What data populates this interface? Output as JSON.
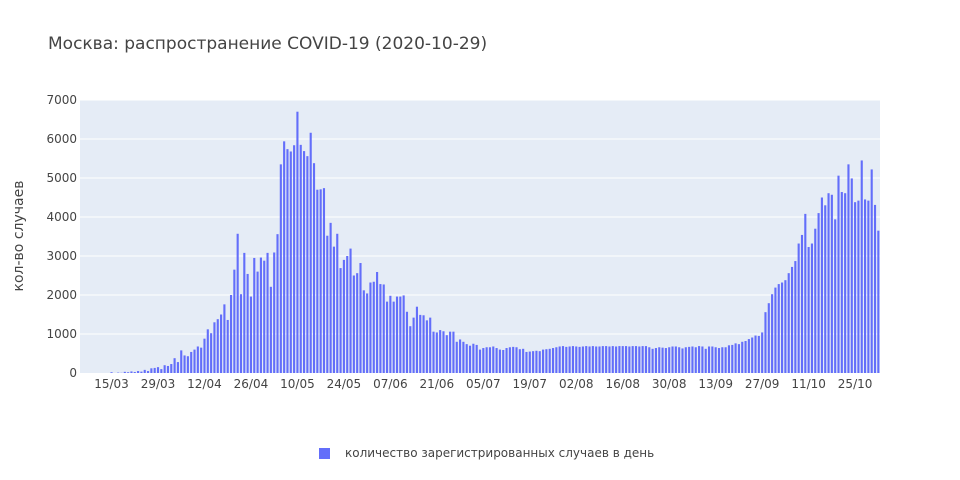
{
  "chart_data": {
    "type": "bar",
    "title": "Москва: распространение COVID-19 (2020-10-29)",
    "ylabel": "кол-во случаев",
    "xlabel": "",
    "ylim": [
      0,
      7000
    ],
    "yticks": [
      0,
      1000,
      2000,
      3000,
      4000,
      5000,
      6000,
      7000
    ],
    "ytick_labels": [
      "0",
      "1000",
      "2000",
      "3000",
      "4000",
      "5000",
      "6000",
      "7000"
    ],
    "start_date": "2020-03-06",
    "xticks": [
      "15/03",
      "29/03",
      "12/04",
      "26/04",
      "10/05",
      "24/05",
      "07/06",
      "21/06",
      "05/07",
      "19/07",
      "02/08",
      "16/08",
      "30/08",
      "13/09",
      "27/09",
      "11/10",
      "25/10"
    ],
    "bar_color": "#636efa",
    "grid": true,
    "legend_position": "bottom",
    "series": [
      {
        "name": "количество зарегистрированных случаев в день",
        "values": [
          0,
          0,
          0,
          0,
          0,
          0,
          0,
          0,
          0,
          20,
          0,
          10,
          5,
          30,
          20,
          40,
          25,
          50,
          35,
          80,
          50,
          120,
          130,
          150,
          100,
          200,
          180,
          230,
          380,
          280,
          580,
          450,
          430,
          540,
          600,
          680,
          650,
          880,
          1120,
          1020,
          1300,
          1380,
          1500,
          1760,
          1360,
          2000,
          2650,
          3570,
          2020,
          3080,
          2540,
          1960,
          2950,
          2600,
          2960,
          2880,
          3080,
          2210,
          3090,
          3560,
          5350,
          5940,
          5740,
          5680,
          5840,
          6700,
          5850,
          5690,
          5560,
          6160,
          5380,
          4700,
          4710,
          4740,
          3520,
          3850,
          3240,
          3570,
          2690,
          2900,
          3000,
          3190,
          2500,
          2560,
          2820,
          2120,
          2040,
          2320,
          2340,
          2590,
          2280,
          2270,
          1830,
          1980,
          1830,
          1960,
          1960,
          1990,
          1570,
          1200,
          1420,
          1700,
          1490,
          1480,
          1350,
          1420,
          1060,
          1040,
          1100,
          1070,
          970,
          1060,
          1060,
          800,
          860,
          800,
          740,
          700,
          750,
          720,
          600,
          640,
          660,
          660,
          680,
          640,
          600,
          590,
          640,
          660,
          670,
          660,
          610,
          620,
          540,
          550,
          560,
          570,
          560,
          600,
          610,
          620,
          640,
          660,
          680,
          690,
          670,
          680,
          690,
          680,
          670,
          680,
          690,
          680,
          690,
          680,
          680,
          690,
          690,
          680,
          690,
          680,
          690,
          690,
          690,
          680,
          690,
          690,
          680,
          690,
          690,
          660,
          620,
          640,
          660,
          650,
          640,
          660,
          680,
          680,
          660,
          630,
          660,
          670,
          680,
          660,
          690,
          680,
          620,
          680,
          680,
          660,
          640,
          660,
          660,
          710,
          720,
          760,
          740,
          800,
          820,
          870,
          910,
          960,
          950,
          1040,
          1560,
          1790,
          2020,
          2190,
          2280,
          2320,
          2380,
          2560,
          2720,
          2870,
          3320,
          3540,
          4080,
          3230,
          3320,
          3700,
          4100,
          4500,
          4300,
          4610,
          4570,
          3940,
          5060,
          4640,
          4610,
          5350,
          4990,
          4380,
          4420,
          5450,
          4450,
          4420,
          5220,
          4310,
          3650
        ]
      }
    ]
  }
}
